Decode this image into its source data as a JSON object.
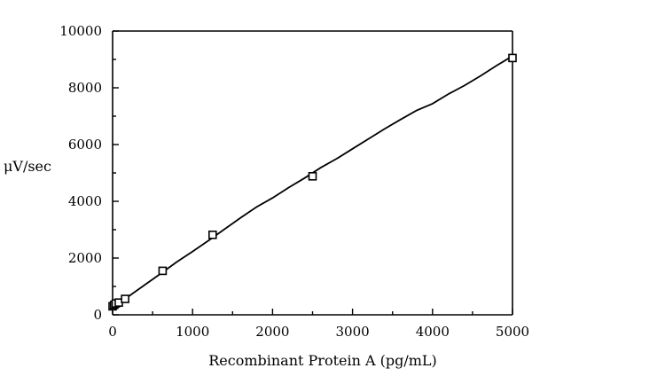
{
  "chart_data": {
    "type": "scatter",
    "xlabel": "Recombinant Protein A (pg/mL)",
    "ylabel": "μV/sec",
    "xlim": [
      0,
      5000
    ],
    "ylim": [
      0,
      10000
    ],
    "x_ticks": [
      0,
      1000,
      2000,
      3000,
      4000,
      5000
    ],
    "x_tick_labels": [
      "0",
      "1000",
      "2000",
      "3000",
      "4000",
      "5000"
    ],
    "y_ticks": [
      0,
      2000,
      4000,
      6000,
      8000,
      10000
    ],
    "y_tick_labels": [
      "0",
      "2000",
      "4000",
      "6000",
      "8000",
      "10000"
    ],
    "grid": false,
    "series": [
      {
        "x": [
          0,
          20,
          40,
          78,
          156,
          625,
          1250,
          2500,
          5000
        ],
        "y": [
          300,
          350,
          400,
          430,
          560,
          1550,
          2820,
          4880,
          9050
        ]
      }
    ],
    "fit_curve": {
      "x": [
        0,
        200,
        400,
        600,
        800,
        1000,
        1200,
        1400,
        1600,
        1800,
        2000,
        2200,
        2400,
        2600,
        2800,
        3000,
        3200,
        3400,
        3600,
        3800,
        4000,
        4200,
        4400,
        4600,
        4800,
        5000
      ],
      "y": [
        300,
        650,
        1050,
        1450,
        1860,
        2230,
        2620,
        3020,
        3420,
        3800,
        4120,
        4480,
        4820,
        5180,
        5500,
        5850,
        6200,
        6550,
        6880,
        7200,
        7440,
        7780,
        8080,
        8420,
        8780,
        9120
      ]
    }
  }
}
